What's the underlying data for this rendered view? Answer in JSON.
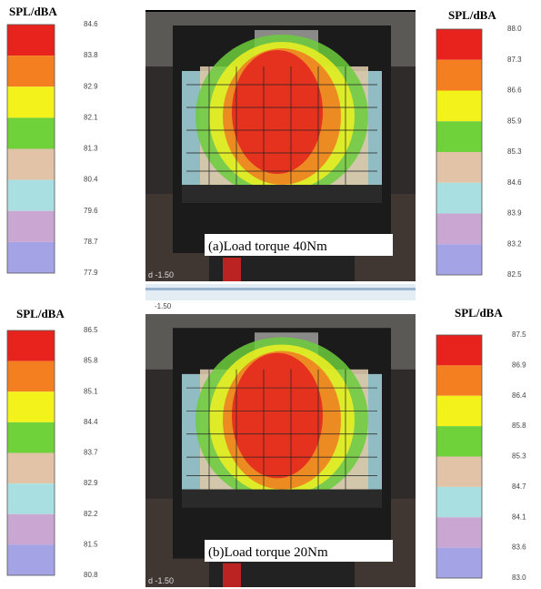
{
  "panels": [
    {
      "caption": "(a)Load torque 40Nm",
      "corner_text": "d -1.50",
      "left_scale": {
        "title": "SPL/dBA",
        "ticks": [
          "84.6",
          "83.8",
          "82.9",
          "82.1",
          "81.3",
          "80.4",
          "79.6",
          "78.7",
          "77.9"
        ]
      },
      "right_scale": {
        "title": "SPL/dBA",
        "ticks": [
          "88.0",
          "87.3",
          "86.6",
          "85.9",
          "85.3",
          "84.6",
          "83.9",
          "83.2",
          "82.5"
        ]
      }
    },
    {
      "caption": "(b)Load torque 20Nm",
      "corner_text": "d -1.50",
      "strip_text": "-1.50",
      "left_scale": {
        "title": "SPL/dBA",
        "ticks": [
          "86.5",
          "85.8",
          "85.1",
          "84.4",
          "83.7",
          "82.9",
          "82.2",
          "81.5",
          "80.8"
        ]
      },
      "right_scale": {
        "title": "SPL/dBA",
        "ticks": [
          "87.5",
          "86.9",
          "86.4",
          "85.8",
          "85.3",
          "84.7",
          "84.1",
          "83.6",
          "83.0"
        ]
      }
    }
  ]
}
